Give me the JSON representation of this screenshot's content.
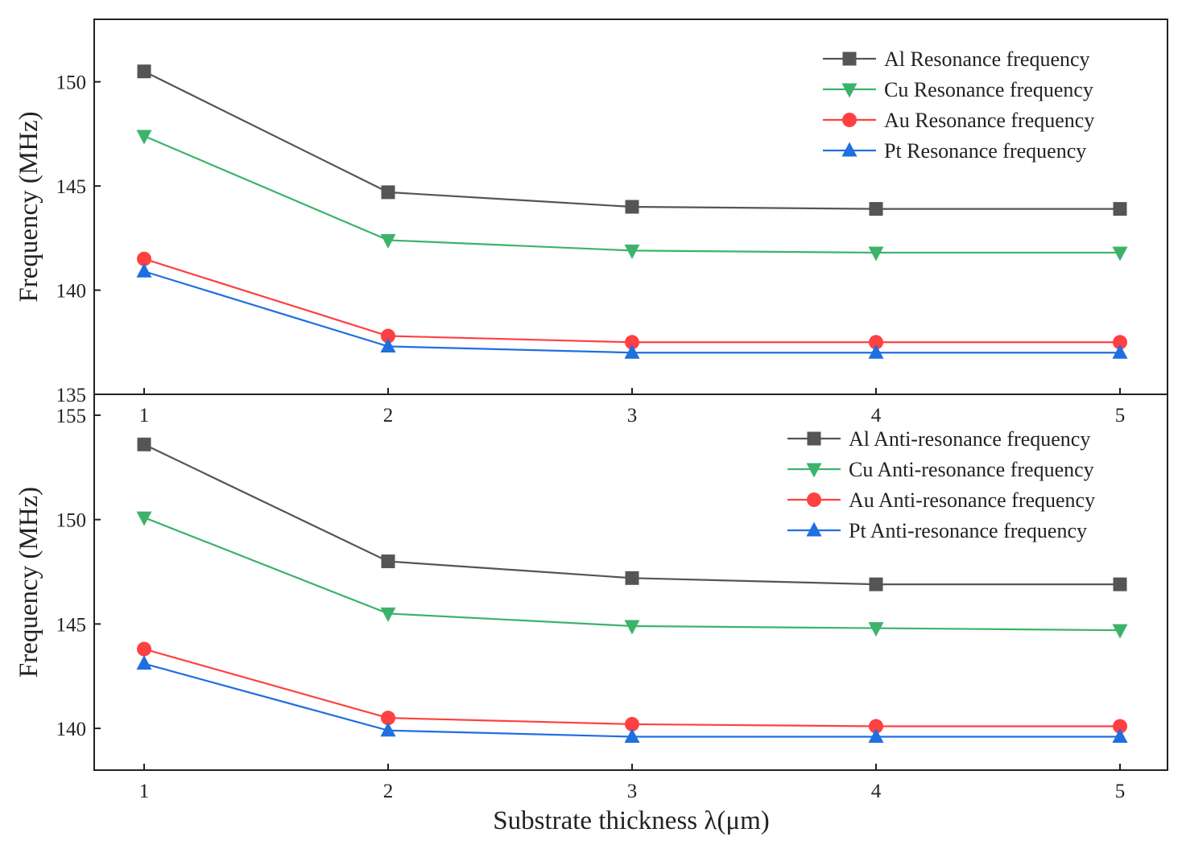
{
  "colors": {
    "Al": "#555555",
    "Cu": "#3cb36a",
    "Au": "#ff4040",
    "Pt": "#1f6fe0",
    "axis": "#222222"
  },
  "chart_data": [
    {
      "type": "line",
      "title": "",
      "xlabel": "",
      "ylabel": "Frequency (MHz)",
      "x": [
        1,
        2,
        3,
        4,
        5
      ],
      "x_tick_labels": [
        "1",
        "2",
        "3",
        "4",
        "5"
      ],
      "ylim": [
        135,
        153
      ],
      "y_ticks": [
        135,
        140,
        145,
        150
      ],
      "y_tick_labels": [
        "135",
        "140",
        "145",
        "150"
      ],
      "legend_position": "top-right",
      "series": [
        {
          "key": "Al",
          "name": "Al Resonance frequency",
          "marker": "square",
          "values": [
            150.5,
            144.7,
            144.0,
            143.9,
            143.9
          ]
        },
        {
          "key": "Cu",
          "name": "Cu Resonance frequency",
          "marker": "triangle-down",
          "values": [
            147.4,
            142.4,
            141.9,
            141.8,
            141.8
          ]
        },
        {
          "key": "Au",
          "name": "Au Resonance frequency",
          "marker": "circle",
          "values": [
            141.5,
            137.8,
            137.5,
            137.5,
            137.5
          ]
        },
        {
          "key": "Pt",
          "name": "Pt Resonance frequency",
          "marker": "triangle-up",
          "values": [
            140.9,
            137.3,
            137.0,
            137.0,
            137.0
          ]
        }
      ]
    },
    {
      "type": "line",
      "title": "",
      "xlabel": "Substrate thickness λ(μm)",
      "ylabel": "Frequency (MHz)",
      "x": [
        1,
        2,
        3,
        4,
        5
      ],
      "x_tick_labels": [
        "1",
        "2",
        "3",
        "4",
        "5"
      ],
      "ylim": [
        138,
        156
      ],
      "y_ticks": [
        140,
        145,
        150,
        155
      ],
      "y_tick_labels": [
        "140",
        "145",
        "150",
        "155"
      ],
      "legend_position": "top-right",
      "series": [
        {
          "key": "Al",
          "name": "Al Anti-resonance frequency",
          "marker": "square",
          "values": [
            153.6,
            148.0,
            147.2,
            146.9,
            146.9
          ]
        },
        {
          "key": "Cu",
          "name": "Cu Anti-resonance frequency",
          "marker": "triangle-down",
          "values": [
            150.1,
            145.5,
            144.9,
            144.8,
            144.7
          ]
        },
        {
          "key": "Au",
          "name": "Au Anti-resonance frequency",
          "marker": "circle",
          "values": [
            143.8,
            140.5,
            140.2,
            140.1,
            140.1
          ]
        },
        {
          "key": "Pt",
          "name": "Pt Anti-resonance frequency",
          "marker": "triangle-up",
          "values": [
            143.1,
            139.9,
            139.6,
            139.6,
            139.6
          ]
        }
      ]
    }
  ]
}
